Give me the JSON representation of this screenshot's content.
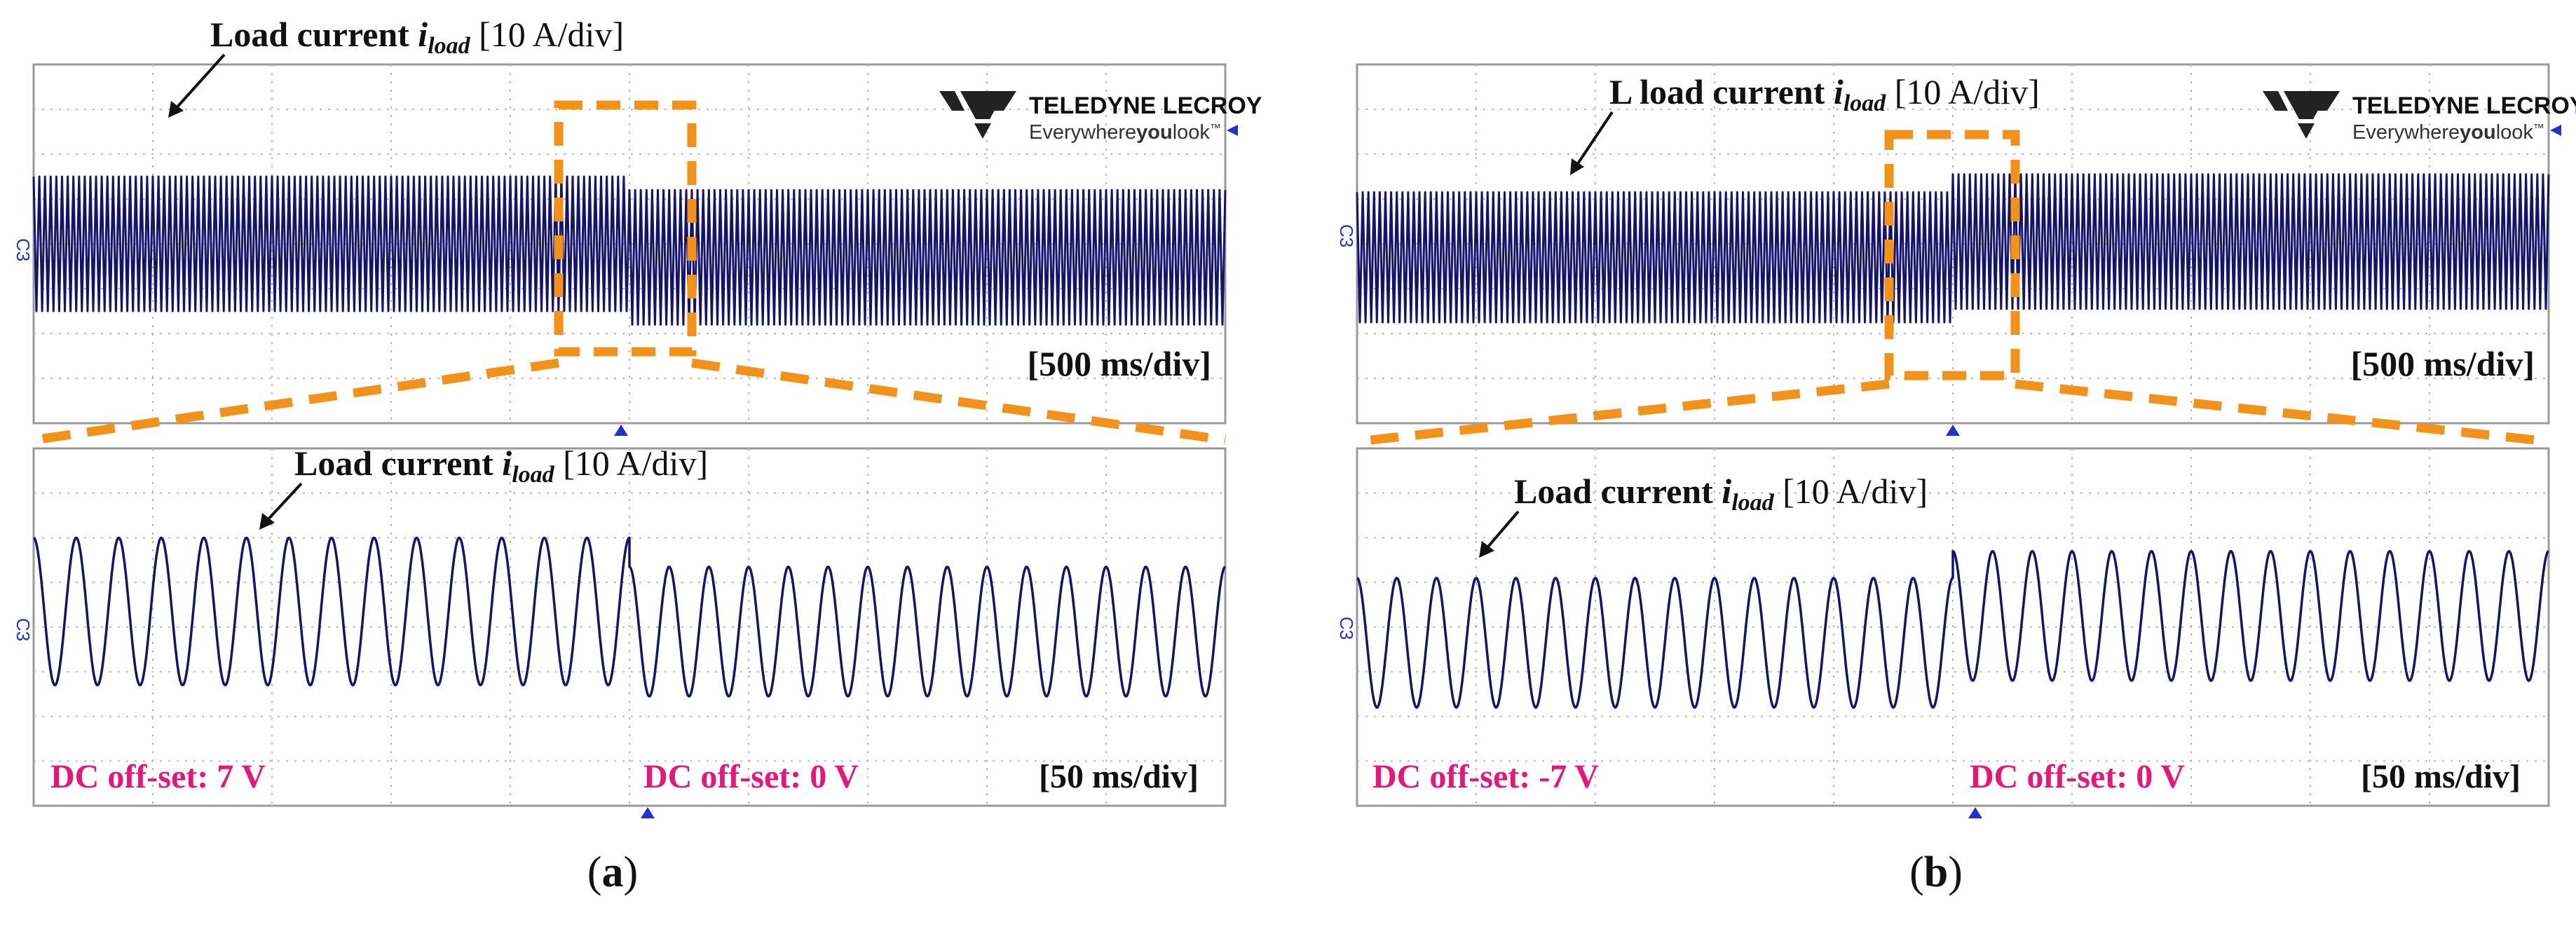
{
  "colors": {
    "trace": "#14146e",
    "highlight": "#f2921b",
    "offset_text": "#e5187a",
    "grid": "#b8b8b8",
    "marker": "#2233cc"
  },
  "brand": {
    "name": "TELEDYNE LECROY",
    "tagline_a": "Everywhere",
    "tagline_b": "you",
    "tagline_c": "look",
    "tm": "™"
  },
  "channel_label": "C3",
  "panels": [
    {
      "caption": "a",
      "top": {
        "label_prefix": "Load current ",
        "label_var": "i",
        "label_sub": "load",
        "label_scale": " [10 A/div]",
        "timebase": "[500 ms/div]",
        "amp_before_div": 1.5,
        "amp_after_div": 1.5,
        "center_before_div": 0.0,
        "center_after_div": -0.3,
        "step_at_div": 5.0
      },
      "bottom": {
        "label_prefix": "Load current ",
        "label_var": "i",
        "label_sub": "load",
        "label_scale": " [10 A/div]",
        "timebase": "[50 ms/div]",
        "offset_before": "DC off-set:  7 V",
        "offset_after": "DC off-set:  0 V",
        "amp_before_div": 1.65,
        "amp_after_div": 1.45,
        "center_before_div": 0.35,
        "center_after_div": -0.1,
        "cycles_before": 14,
        "cycles_after": 15,
        "step_at_div": 5.0
      }
    },
    {
      "caption": "b",
      "top": {
        "label_prefix": "L load current ",
        "label_var": "i",
        "label_sub": "load",
        "label_scale": " [10 A/div]",
        "timebase": "[500 ms/div]",
        "amp_before_div": 1.45,
        "amp_after_div": 1.5,
        "center_before_div": -0.3,
        "center_after_div": 0.05,
        "step_at_div": 5.0
      },
      "bottom": {
        "label_prefix": "Load current ",
        "label_var": "i",
        "label_sub": "load",
        "label_scale": " [10 A/div]",
        "timebase": "[50 ms/div]",
        "offset_before": "DC off-set:  -7 V",
        "offset_after": "DC off-set:  0 V",
        "amp_before_div": 1.45,
        "amp_after_div": 1.45,
        "center_before_div": -0.35,
        "center_after_div": 0.25,
        "cycles_before": 15,
        "cycles_after": 15,
        "step_at_div": 5.0
      }
    }
  ]
}
